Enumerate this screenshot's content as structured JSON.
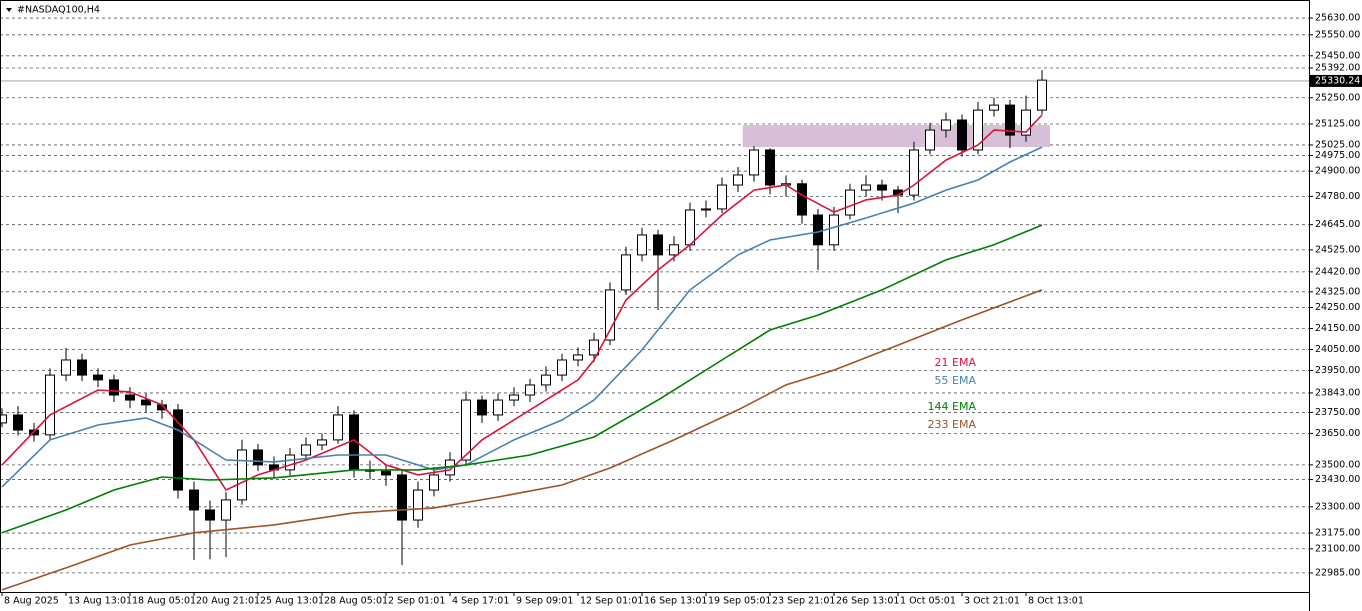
{
  "chart_data": {
    "type": "candlestick",
    "title": "#NASDAQ100,H4",
    "xlim": [
      -0.125,
      81.6875
    ],
    "ylim": [
      22894,
      25716
    ],
    "grid": true,
    "xticks": [
      {
        "value": 0,
        "label": "8 Aug 2025"
      },
      {
        "value": 4,
        "label": "13 Aug 13:01"
      },
      {
        "value": 8,
        "label": "18 Aug 05:01"
      },
      {
        "value": 12,
        "label": "20 Aug 21:01"
      },
      {
        "value": 16,
        "label": "25 Aug 13:01"
      },
      {
        "value": 20,
        "label": "28 Aug 05:01"
      },
      {
        "value": 24,
        "label": "2 Sep 01:01"
      },
      {
        "value": 28,
        "label": "4 Sep 17:01"
      },
      {
        "value": 32,
        "label": "9 Sep 09:01"
      },
      {
        "value": 36,
        "label": "12 Sep 01:01"
      },
      {
        "value": 40,
        "label": "16 Sep 13:01"
      },
      {
        "value": 44,
        "label": "19 Sep 05:01"
      },
      {
        "value": 48,
        "label": "23 Sep 21:01"
      },
      {
        "value": 52,
        "label": "26 Sep 13:01"
      },
      {
        "value": 56,
        "label": "1 Oct 05:01"
      },
      {
        "value": 60,
        "label": "3 Oct 21:01"
      },
      {
        "value": 64,
        "label": "8 Oct 13:01"
      }
    ],
    "yticks": [
      {
        "value": 25630,
        "label": "25630.00"
      },
      {
        "value": 25550,
        "label": "25550.00"
      },
      {
        "value": 25450,
        "label": "25450.00"
      },
      {
        "value": 25392,
        "label": "25392.00"
      },
      {
        "value": 25250,
        "label": "25250.00"
      },
      {
        "value": 25125,
        "label": "25125.00"
      },
      {
        "value": 25025,
        "label": "25025.00"
      },
      {
        "value": 24975,
        "label": "24975.00"
      },
      {
        "value": 24900,
        "label": "24900.00"
      },
      {
        "value": 24780,
        "label": "24780.00"
      },
      {
        "value": 24645,
        "label": "24645.00"
      },
      {
        "value": 24525,
        "label": "24525.00"
      },
      {
        "value": 24420,
        "label": "24420.00"
      },
      {
        "value": 24325,
        "label": "24325.00"
      },
      {
        "value": 24250,
        "label": "24250.00"
      },
      {
        "value": 24150,
        "label": "24150.00"
      },
      {
        "value": 24050,
        "label": "24050.00"
      },
      {
        "value": 23950,
        "label": "23950.00"
      },
      {
        "value": 23843,
        "label": "23843.00"
      },
      {
        "value": 23750,
        "label": "23750.00"
      },
      {
        "value": 23650,
        "label": "23650.00"
      },
      {
        "value": 23500,
        "label": "23500.00"
      },
      {
        "value": 23430,
        "label": "23430.00"
      },
      {
        "value": 23300,
        "label": "23300.00"
      },
      {
        "value": 23175,
        "label": "23175.00"
      },
      {
        "value": 23100,
        "label": "23100.00"
      },
      {
        "value": 22985,
        "label": "22985.00"
      }
    ],
    "current_price": 25330.24,
    "zone": {
      "xlim": [
        46.3,
        65.5
      ],
      "ylim": [
        25015,
        25120
      ],
      "color": "#d8bfd8"
    },
    "candles": {
      "open": [
        23700,
        23738,
        23666,
        23643,
        23928,
        24000,
        23928,
        23905,
        23833,
        23809,
        23786,
        23762,
        23380,
        23285,
        23237,
        23333,
        23571,
        23500,
        23476,
        23547,
        23595,
        23619,
        23738,
        23476,
        23470,
        23452,
        23237,
        23380,
        23452,
        23523,
        23809,
        23738,
        23809,
        23833,
        23881,
        23928,
        24000,
        24024,
        24095,
        24334,
        24501,
        24596,
        24501,
        24549,
        24715,
        24720,
        24834,
        24882,
        25001,
        24834,
        24840,
        24691,
        24549,
        24691,
        24810,
        24834,
        24810,
        24786,
        25001,
        25096,
        25144,
        25001,
        25191,
        25215,
        25072,
        25191
      ],
      "high": [
        23770,
        23780,
        23700,
        23960,
        24057,
        24030,
        23960,
        23930,
        23870,
        23840,
        23810,
        23790,
        23420,
        23330,
        23370,
        23620,
        23600,
        23540,
        23580,
        23630,
        23650,
        23780,
        23760,
        23520,
        23500,
        23480,
        23420,
        23490,
        23560,
        23850,
        23830,
        23840,
        23870,
        23910,
        23970,
        24030,
        24060,
        24130,
        24370,
        24540,
        24630,
        24620,
        24590,
        24750,
        24760,
        24870,
        24920,
        25020,
        25010,
        24880,
        24860,
        24720,
        24730,
        24840,
        24880,
        24860,
        24830,
        25040,
        25130,
        25180,
        25170,
        25230,
        25250,
        25240,
        25260,
        25382
      ],
      "low": [
        23680,
        23640,
        23610,
        23620,
        23900,
        23900,
        23870,
        23800,
        23770,
        23750,
        23720,
        23340,
        23047,
        23050,
        23060,
        23310,
        23470,
        23440,
        23450,
        23520,
        23570,
        23600,
        23440,
        23430,
        23400,
        23023,
        23200,
        23350,
        23420,
        23500,
        23700,
        23710,
        23780,
        23800,
        23850,
        23900,
        23970,
        23990,
        24070,
        24310,
        24470,
        24238,
        24470,
        24520,
        24680,
        24700,
        24800,
        24850,
        24790,
        24780,
        24650,
        24429,
        24520,
        24670,
        24780,
        24760,
        24700,
        24760,
        24980,
        25060,
        24970,
        24980,
        25160,
        25010,
        25040,
        25170
      ],
      "close": [
        23738,
        23666,
        23643,
        23928,
        24000,
        23928,
        23905,
        23833,
        23809,
        23786,
        23762,
        23380,
        23285,
        23237,
        23333,
        23571,
        23500,
        23476,
        23547,
        23595,
        23619,
        23738,
        23476,
        23470,
        23452,
        23237,
        23380,
        23452,
        23523,
        23809,
        23738,
        23809,
        23833,
        23881,
        23928,
        24000,
        24024,
        24095,
        24334,
        24501,
        24596,
        24501,
        24549,
        24715,
        24720,
        24834,
        24882,
        25001,
        24834,
        24840,
        24691,
        24549,
        24691,
        24810,
        24834,
        24810,
        24786,
        25001,
        25096,
        25144,
        25001,
        25191,
        25215,
        25072,
        25191,
        25334
      ]
    },
    "series": [
      {
        "name": "21 EMA",
        "color": "#dc143c",
        "x": [
          0,
          3,
          6,
          8,
          10,
          12,
          14,
          16,
          19,
          22,
          24,
          26,
          28,
          30,
          33,
          36,
          37,
          39,
          41,
          43,
          45,
          47,
          49,
          50,
          52,
          54,
          56,
          57,
          59,
          61,
          62,
          64,
          65
        ],
        "values": [
          23500,
          23738,
          23857,
          23848,
          23786,
          23619,
          23380,
          23452,
          23523,
          23619,
          23500,
          23452,
          23476,
          23619,
          23762,
          23905,
          24000,
          24286,
          24429,
          24549,
          24691,
          24810,
          24834,
          24786,
          24705,
          24763,
          24786,
          24834,
          24953,
          25025,
          25096,
          25087,
          25168
        ]
      },
      {
        "name": "55 EMA",
        "color": "#4682b4",
        "x": [
          0,
          3,
          6,
          9,
          11,
          14,
          17,
          21,
          24,
          27,
          29,
          32,
          35,
          37,
          40,
          43,
          46,
          48,
          51,
          54,
          57,
          59,
          61,
          63,
          65
        ],
        "values": [
          23395,
          23619,
          23690,
          23724,
          23666,
          23523,
          23514,
          23547,
          23547,
          23476,
          23500,
          23619,
          23714,
          23809,
          24048,
          24334,
          24501,
          24572,
          24610,
          24677,
          24748,
          24810,
          24858,
          24944,
          25015
        ]
      },
      {
        "name": "144 EMA",
        "color": "#008000",
        "x": [
          0,
          4,
          7,
          10,
          13,
          17,
          22,
          26,
          29,
          33,
          37,
          41,
          45,
          48,
          51,
          55,
          59,
          62,
          65
        ],
        "values": [
          23176,
          23285,
          23380,
          23442,
          23428,
          23438,
          23476,
          23476,
          23500,
          23547,
          23633,
          23809,
          24000,
          24143,
          24214,
          24334,
          24477,
          24549,
          24643
        ]
      },
      {
        "name": "233 EMA",
        "color": "#a0522d",
        "x": [
          0,
          4,
          8,
          12,
          17,
          22,
          27,
          31,
          35,
          38,
          42,
          46,
          49,
          52,
          56,
          60,
          65
        ],
        "values": [
          22904,
          23009,
          23118,
          23176,
          23214,
          23271,
          23295,
          23347,
          23404,
          23485,
          23619,
          23762,
          23881,
          23952,
          24071,
          24191,
          24334
        ]
      }
    ]
  }
}
